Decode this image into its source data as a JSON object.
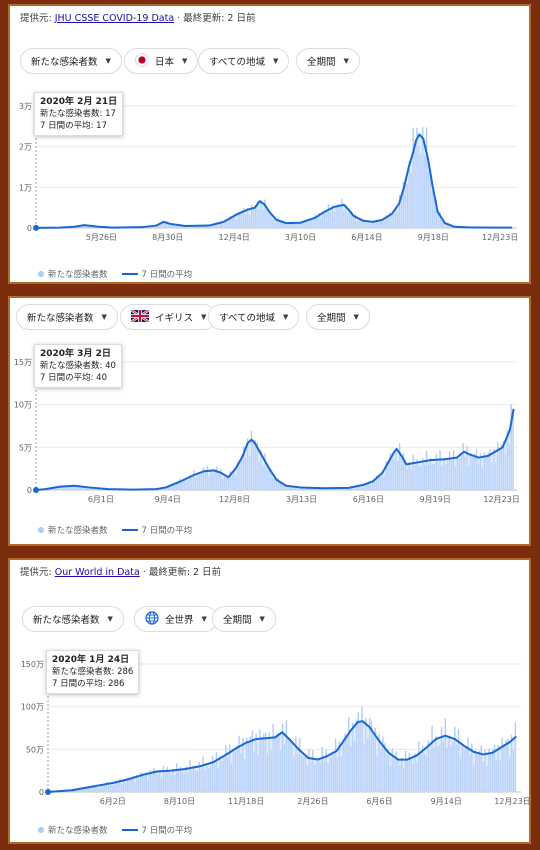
{
  "colors": {
    "bar": "#aecbfa",
    "area": "#c6dafc",
    "line": "#1967d2",
    "grid": "#e8eaed"
  },
  "panels": [
    {
      "source": {
        "prefix": "提供元: ",
        "link": "JHU CSSE COVID-19 Data",
        "suffix": " · 最終更新: 2 日前"
      },
      "chips": {
        "metric": "新たな感染者数",
        "region": "日本",
        "region_icon": "japan-flag-icon",
        "area": "すべての地域",
        "period": "全期間"
      },
      "tooltip": {
        "date": "2020年 2月 21日",
        "line1": "新たな感染者数: 17",
        "line2": "7 日間の平均: 17"
      },
      "legend": {
        "bars": "新たな感染者数",
        "line": "7 日間の平均"
      },
      "chart_data": {
        "type": "area",
        "y_ticks": [
          0,
          10000,
          20000,
          30000
        ],
        "y_tick_labels": [
          "0",
          "1万",
          "2万",
          "3万"
        ],
        "ylim": [
          0,
          30000
        ],
        "x_tick_labels": [
          "5月26日",
          "8月30日",
          "12月4日",
          "3月10日",
          "6月14日",
          "9月18日",
          "12月23日"
        ],
        "x_tick_pos": [
          0.136,
          0.274,
          0.412,
          0.55,
          0.688,
          0.826,
          0.965
        ],
        "grid": true,
        "series": [
          {
            "name": "7 日間の平均",
            "values": [
              [
                0.0,
                17
              ],
              [
                0.05,
                100
              ],
              [
                0.08,
                300
              ],
              [
                0.1,
                700
              ],
              [
                0.13,
                300
              ],
              [
                0.16,
                100
              ],
              [
                0.22,
                200
              ],
              [
                0.25,
                600
              ],
              [
                0.265,
                1500
              ],
              [
                0.28,
                1000
              ],
              [
                0.31,
                500
              ],
              [
                0.36,
                600
              ],
              [
                0.39,
                1500
              ],
              [
                0.42,
                3500
              ],
              [
                0.44,
                4500
              ],
              [
                0.455,
                5000
              ],
              [
                0.465,
                6600
              ],
              [
                0.475,
                5800
              ],
              [
                0.485,
                4000
              ],
              [
                0.5,
                2000
              ],
              [
                0.52,
                1200
              ],
              [
                0.55,
                1300
              ],
              [
                0.58,
                2500
              ],
              [
                0.6,
                4000
              ],
              [
                0.62,
                5200
              ],
              [
                0.64,
                5700
              ],
              [
                0.65,
                4500
              ],
              [
                0.66,
                3000
              ],
              [
                0.68,
                1800
              ],
              [
                0.7,
                1500
              ],
              [
                0.72,
                2000
              ],
              [
                0.74,
                3500
              ],
              [
                0.755,
                6000
              ],
              [
                0.765,
                10000
              ],
              [
                0.775,
                15000
              ],
              [
                0.785,
                19000
              ],
              [
                0.79,
                21500
              ],
              [
                0.797,
                23000
              ],
              [
                0.805,
                22000
              ],
              [
                0.815,
                17000
              ],
              [
                0.825,
                10000
              ],
              [
                0.835,
                4000
              ],
              [
                0.85,
                1200
              ],
              [
                0.87,
                300
              ],
              [
                0.9,
                150
              ],
              [
                0.95,
                100
              ],
              [
                0.99,
                100
              ]
            ]
          }
        ]
      }
    },
    {
      "chips": {
        "metric": "新たな感染者数",
        "region": "イギリス",
        "region_icon": "uk-flag-icon",
        "area": "すべての地域",
        "period": "全期間"
      },
      "tooltip": {
        "date": "2020年 3月 2日",
        "line1": "新たな感染者数: 40",
        "line2": "7 日間の平均: 40"
      },
      "legend": {
        "bars": "新たな感染者数",
        "line": "7 日間の平均"
      },
      "chart_data": {
        "type": "area",
        "y_ticks": [
          0,
          50000,
          100000,
          150000
        ],
        "y_tick_labels": [
          "0",
          "5万",
          "10万",
          "15万"
        ],
        "ylim": [
          0,
          150000
        ],
        "x_tick_labels": [
          "6月1日",
          "9月4日",
          "12月8日",
          "3月13日",
          "6月16日",
          "9月19日",
          "12月23日"
        ],
        "x_tick_pos": [
          0.135,
          0.274,
          0.413,
          0.552,
          0.691,
          0.83,
          0.968
        ],
        "grid": true,
        "series": [
          {
            "name": "7 日間の平均",
            "values": [
              [
                0.0,
                40
              ],
              [
                0.02,
                1000
              ],
              [
                0.05,
                4000
              ],
              [
                0.08,
                5000
              ],
              [
                0.11,
                3000
              ],
              [
                0.15,
                1000
              ],
              [
                0.2,
                500
              ],
              [
                0.25,
                1000
              ],
              [
                0.27,
                3000
              ],
              [
                0.3,
                10000
              ],
              [
                0.33,
                18000
              ],
              [
                0.35,
                22000
              ],
              [
                0.37,
                23000
              ],
              [
                0.385,
                20000
              ],
              [
                0.4,
                15000
              ],
              [
                0.415,
                25000
              ],
              [
                0.43,
                40000
              ],
              [
                0.44,
                55000
              ],
              [
                0.448,
                59000
              ],
              [
                0.455,
                55000
              ],
              [
                0.47,
                40000
              ],
              [
                0.485,
                25000
              ],
              [
                0.5,
                12000
              ],
              [
                0.52,
                5000
              ],
              [
                0.55,
                3000
              ],
              [
                0.6,
                2000
              ],
              [
                0.65,
                2500
              ],
              [
                0.68,
                6000
              ],
              [
                0.7,
                10000
              ],
              [
                0.72,
                20000
              ],
              [
                0.73,
                30000
              ],
              [
                0.745,
                45000
              ],
              [
                0.75,
                48000
              ],
              [
                0.76,
                40000
              ],
              [
                0.77,
                30000
              ],
              [
                0.79,
                32000
              ],
              [
                0.82,
                35000
              ],
              [
                0.85,
                36000
              ],
              [
                0.875,
                38000
              ],
              [
                0.89,
                45000
              ],
              [
                0.9,
                42000
              ],
              [
                0.92,
                38000
              ],
              [
                0.94,
                40000
              ],
              [
                0.955,
                45000
              ],
              [
                0.97,
                50000
              ],
              [
                0.985,
                70000
              ],
              [
                0.993,
                95000
              ]
            ]
          }
        ]
      }
    },
    {
      "source": {
        "prefix": "提供元: ",
        "link": "Our World in Data",
        "suffix": " · 最終更新: 2 日前"
      },
      "chips": {
        "metric": "新たな感染者数",
        "region": "全世界",
        "region_icon": "globe-icon",
        "area": "",
        "period": "全期間"
      },
      "tooltip": {
        "date": "2020年 1月 24日",
        "line1": "新たな感染者数: 286",
        "line2": "7 日間の平均: 286"
      },
      "legend": {
        "bars": "新たな感染者数",
        "line": "7 日間の平均"
      },
      "chart_data": {
        "type": "area",
        "y_ticks": [
          0,
          500000,
          1000000,
          1500000
        ],
        "y_tick_labels": [
          "0",
          "50万",
          "100万",
          "150万"
        ],
        "ylim": [
          0,
          1500000
        ],
        "x_tick_labels": [
          "6月2日",
          "8月10日",
          "11月18日",
          "2月26日",
          "6月6日",
          "9月14日",
          "12月23日"
        ],
        "x_tick_pos": [
          0.137,
          0.278,
          0.419,
          0.56,
          0.701,
          0.842,
          0.982
        ],
        "grid": true,
        "series": [
          {
            "name": "7 日間の平均",
            "values": [
              [
                0.0,
                286
              ],
              [
                0.05,
                20000
              ],
              [
                0.08,
                50000
              ],
              [
                0.11,
                80000
              ],
              [
                0.14,
                110000
              ],
              [
                0.17,
                150000
              ],
              [
                0.2,
                200000
              ],
              [
                0.23,
                240000
              ],
              [
                0.26,
                250000
              ],
              [
                0.29,
                270000
              ],
              [
                0.32,
                300000
              ],
              [
                0.35,
                350000
              ],
              [
                0.38,
                450000
              ],
              [
                0.4,
                520000
              ],
              [
                0.42,
                580000
              ],
              [
                0.44,
                620000
              ],
              [
                0.46,
                630000
              ],
              [
                0.48,
                640000
              ],
              [
                0.495,
                700000
              ],
              [
                0.51,
                620000
              ],
              [
                0.53,
                500000
              ],
              [
                0.55,
                400000
              ],
              [
                0.57,
                380000
              ],
              [
                0.59,
                420000
              ],
              [
                0.61,
                480000
              ],
              [
                0.625,
                600000
              ],
              [
                0.64,
                720000
              ],
              [
                0.655,
                820000
              ],
              [
                0.665,
                830000
              ],
              [
                0.68,
                760000
              ],
              [
                0.7,
                600000
              ],
              [
                0.72,
                460000
              ],
              [
                0.74,
                380000
              ],
              [
                0.76,
                380000
              ],
              [
                0.78,
                430000
              ],
              [
                0.8,
                520000
              ],
              [
                0.82,
                620000
              ],
              [
                0.84,
                660000
              ],
              [
                0.86,
                620000
              ],
              [
                0.88,
                540000
              ],
              [
                0.9,
                470000
              ],
              [
                0.92,
                440000
              ],
              [
                0.94,
                460000
              ],
              [
                0.96,
                530000
              ],
              [
                0.975,
                580000
              ],
              [
                0.99,
                650000
              ]
            ]
          }
        ]
      }
    }
  ]
}
